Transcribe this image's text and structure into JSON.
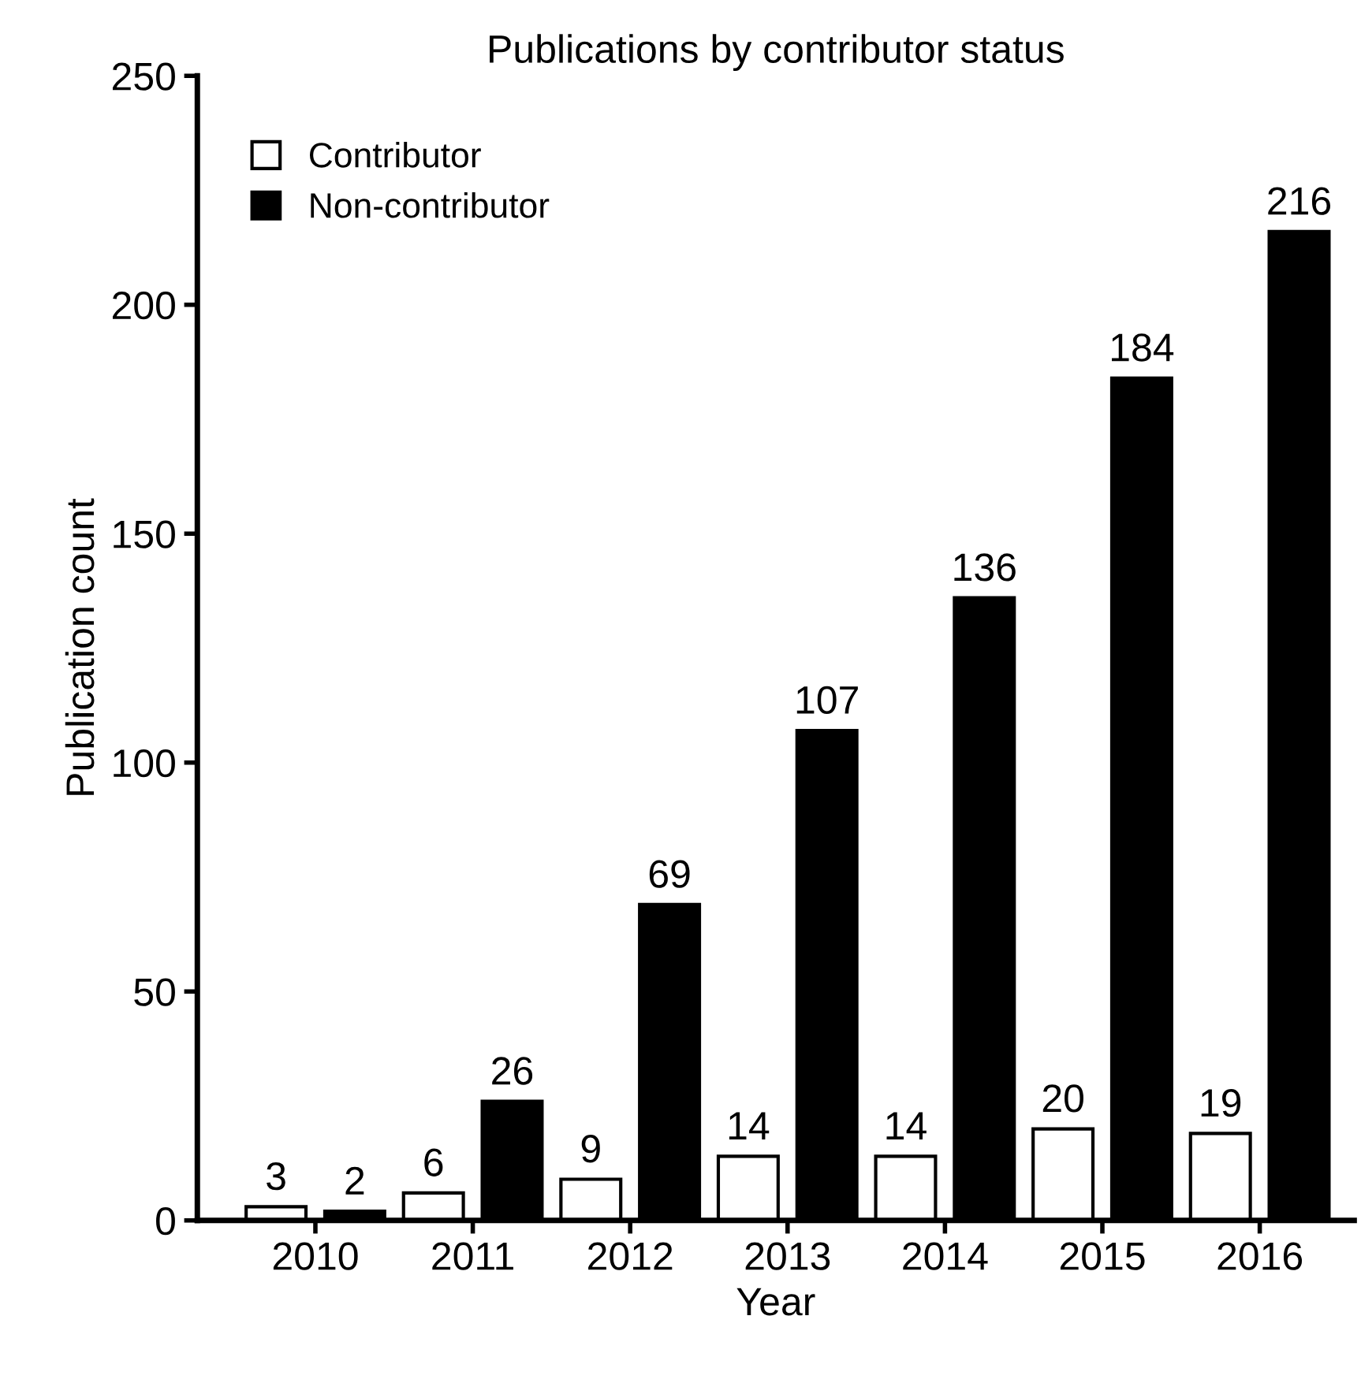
{
  "chart_data": {
    "type": "bar",
    "title": "Publications by contributor status",
    "xlabel": "Year",
    "ylabel": "Publication count",
    "categories": [
      "2010",
      "2011",
      "2012",
      "2013",
      "2014",
      "2015",
      "2016"
    ],
    "series": [
      {
        "name": "Contributor",
        "color": "#ffffff",
        "values": [
          3,
          6,
          9,
          14,
          14,
          20,
          19
        ]
      },
      {
        "name": "Non-contributor",
        "color": "#000000",
        "values": [
          2,
          26,
          69,
          107,
          136,
          184,
          216
        ]
      }
    ],
    "ylim": [
      0,
      250
    ],
    "yticks": [
      0,
      50,
      100,
      150,
      200,
      250
    ],
    "grid": false,
    "legend": "top left",
    "data_labels": true
  }
}
